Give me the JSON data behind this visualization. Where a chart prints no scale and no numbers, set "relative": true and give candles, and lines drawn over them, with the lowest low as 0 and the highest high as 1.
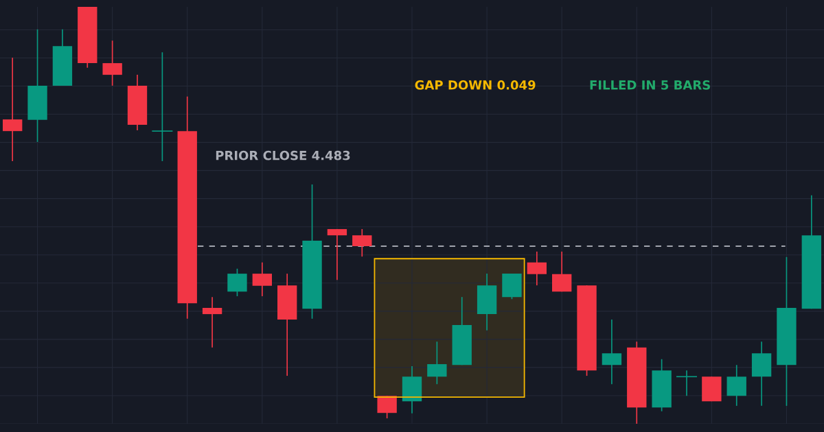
{
  "chart_data": {
    "type": "candlestick",
    "relative": true,
    "categories": [
      null,
      null,
      null,
      null,
      null,
      null,
      null,
      null,
      null,
      null,
      null,
      null,
      null,
      null,
      null,
      null,
      null,
      null,
      null,
      null,
      null,
      null,
      null,
      null,
      null,
      null,
      null,
      null,
      null,
      null,
      null,
      null,
      null
    ],
    "ohlc": [
      [
        0.73,
        0.878,
        0.63,
        0.702
      ],
      [
        0.729,
        0.946,
        0.676,
        0.811
      ],
      [
        0.811,
        0.946,
        0.811,
        0.906
      ],
      [
        1.0,
        1.0,
        0.854,
        0.865
      ],
      [
        0.865,
        0.919,
        0.811,
        0.837
      ],
      [
        0.811,
        0.837,
        0.704,
        0.717
      ],
      [
        0.702,
        0.891,
        0.63,
        0.702
      ],
      [
        0.702,
        0.785,
        0.252,
        0.289
      ],
      [
        0.278,
        0.304,
        0.183,
        0.263
      ],
      [
        0.317,
        0.372,
        0.306,
        0.36
      ],
      [
        0.36,
        0.387,
        0.306,
        0.331
      ],
      [
        0.332,
        0.36,
        0.115,
        0.25
      ],
      [
        0.276,
        0.574,
        0.252,
        0.439
      ],
      [
        0.467,
        0.467,
        0.345,
        0.452
      ],
      [
        0.452,
        0.467,
        0.401,
        0.426
      ],
      [
        0.067,
        0.067,
        0.013,
        0.026
      ],
      [
        0.054,
        0.138,
        0.025,
        0.113
      ],
      [
        0.113,
        0.197,
        0.095,
        0.143
      ],
      [
        0.141,
        0.304,
        0.141,
        0.237
      ],
      [
        0.263,
        0.36,
        0.224,
        0.332
      ],
      [
        0.304,
        0.36,
        0.299,
        0.36
      ],
      [
        0.387,
        0.413,
        0.332,
        0.359
      ],
      [
        0.359,
        0.413,
        0.317,
        0.317
      ],
      [
        0.332,
        0.332,
        0.115,
        0.128
      ],
      [
        0.141,
        0.25,
        0.095,
        0.169
      ],
      [
        0.183,
        0.197,
        0.0,
        0.039
      ],
      [
        0.039,
        0.155,
        0.03,
        0.128
      ],
      [
        0.113,
        0.128,
        0.067,
        0.113
      ],
      [
        0.113,
        0.113,
        0.054,
        0.054
      ],
      [
        0.067,
        0.141,
        0.043,
        0.113
      ],
      [
        0.113,
        0.197,
        0.043,
        0.169
      ],
      [
        0.141,
        0.4,
        0.043,
        0.278
      ],
      [
        0.276,
        0.548,
        0.276,
        0.452
      ]
    ],
    "colors": [
      "#f23645",
      "#089981",
      "#089981",
      "#f23645",
      "#f23645",
      "#f23645",
      "#089981",
      "#f23645",
      "#f23645",
      "#089981",
      "#f23645",
      "#f23645",
      "#089981",
      "#f23645",
      "#f23645",
      "#f23645",
      "#089981",
      "#089981",
      "#089981",
      "#089981",
      "#089981",
      "#f23645",
      "#f23645",
      "#f23645",
      "#089981",
      "#f23645",
      "#089981",
      "#089981",
      "#f23645",
      "#089981",
      "#089981",
      "#089981",
      "#089981"
    ],
    "ref_lines": [
      {
        "axis": "y",
        "value": 0.426,
        "label": "PRIOR CLOSE 4.483",
        "color": "#d1d4dc",
        "line_style": "dashed"
      }
    ],
    "bands": [
      {
        "axis": "y",
        "from": 0.064,
        "to": 0.396,
        "label": "GAP DOWN 0.049",
        "color": "#f5b800"
      }
    ],
    "annotations": [
      "FILLED IN 5 BARS"
    ],
    "grid": true,
    "tick_labels": false
  }
}
